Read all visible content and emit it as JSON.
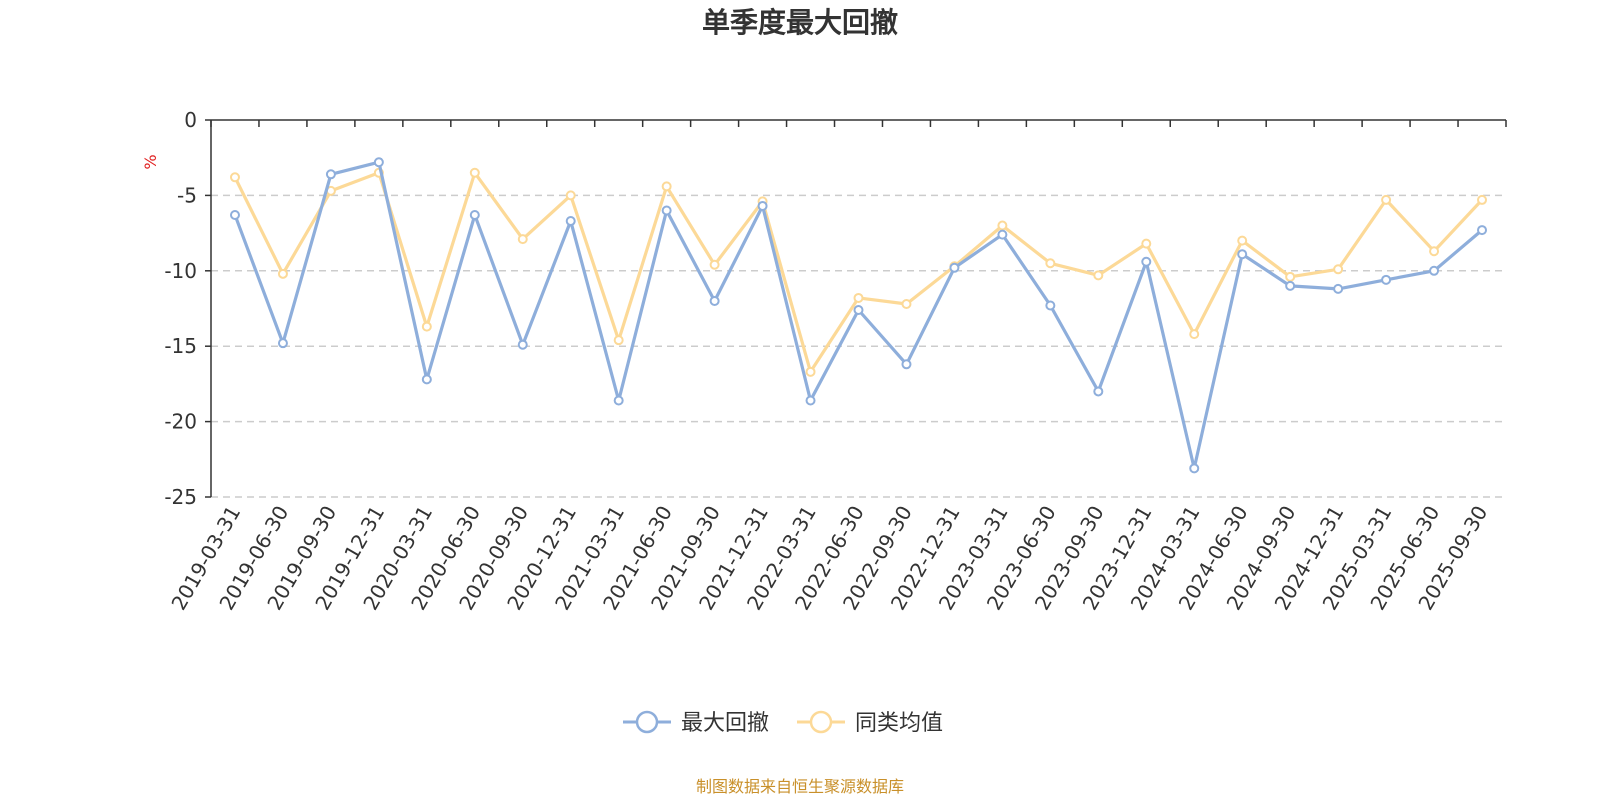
{
  "chart_data": {
    "type": "line",
    "title": "单季度最大回撤",
    "ylabel": "%",
    "ylim": [
      -25,
      0
    ],
    "yticks": [
      0,
      -5,
      -10,
      -15,
      -20,
      -25
    ],
    "grid": true,
    "legend_position": "bottom-center",
    "categories": [
      "2019-03-31",
      "2019-06-30",
      "2019-09-30",
      "2019-12-31",
      "2020-03-31",
      "2020-06-30",
      "2020-09-30",
      "2020-12-31",
      "2021-03-31",
      "2021-06-30",
      "2021-09-30",
      "2021-12-31",
      "2022-03-31",
      "2022-06-30",
      "2022-09-30",
      "2022-12-31",
      "2023-03-31",
      "2023-06-30",
      "2023-09-30",
      "2023-12-31",
      "2024-03-31",
      "2024-06-30",
      "2024-09-30",
      "2024-12-31",
      "2025-03-31",
      "2025-06-30",
      "2025-09-30"
    ],
    "series": [
      {
        "name": "最大回撤",
        "color": "#8eaedb",
        "values": [
          -6.3,
          -14.8,
          -3.6,
          -2.8,
          -17.2,
          -6.3,
          -14.9,
          -6.7,
          -18.6,
          -6.0,
          -12.0,
          -5.7,
          -18.6,
          -12.6,
          -16.2,
          -9.8,
          -7.6,
          -12.3,
          -18.0,
          -9.4,
          -23.1,
          -8.9,
          -11.0,
          -11.2,
          -10.6,
          -10.0,
          -7.3
        ]
      },
      {
        "name": "同类均值",
        "color": "#fcd997",
        "values": [
          -3.8,
          -10.2,
          -4.7,
          -3.5,
          -13.7,
          -3.5,
          -7.9,
          -5.0,
          -14.6,
          -4.4,
          -9.6,
          -5.4,
          -16.7,
          -11.8,
          -12.2,
          -9.7,
          -7.0,
          -9.5,
          -10.3,
          -8.2,
          -14.2,
          -8.0,
          -10.4,
          -9.9,
          -5.3,
          -8.7,
          -5.3
        ]
      }
    ]
  },
  "source_text": "制图数据来自恒生聚源数据库",
  "colors": {
    "axis": "#333333",
    "grid": "#cccccc",
    "unit": "#e02020",
    "source": "#c9902a"
  }
}
